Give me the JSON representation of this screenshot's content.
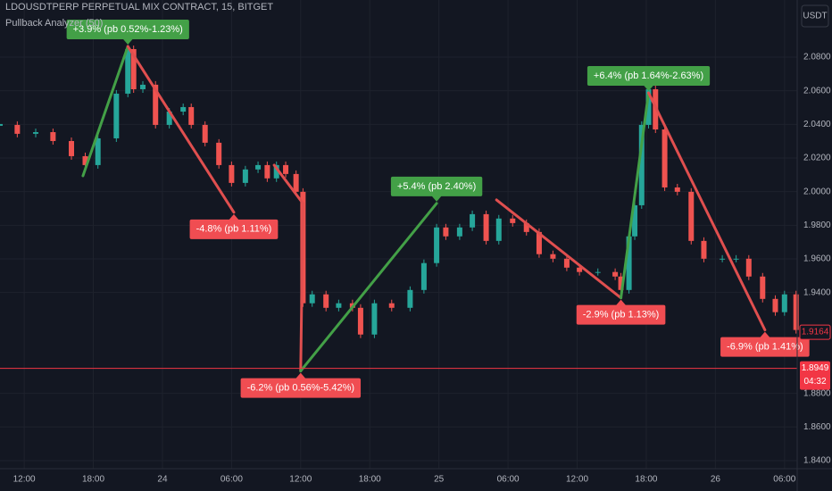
{
  "chart_data": {
    "type": "price",
    "title": "LDOUSDTPERP PERPETUAL MIX CONTRACT, 15, BITGET",
    "subtitle": "Pullback Analyzer (50)",
    "currency": "USDT",
    "xlim": [
      9.9,
      79.1
    ],
    "xticks": [
      {
        "value": 12,
        "label": "12:00"
      },
      {
        "value": 18,
        "label": "18:00"
      },
      {
        "value": 24,
        "label": "24"
      },
      {
        "value": 30,
        "label": "06:00"
      },
      {
        "value": 36,
        "label": "12:00"
      },
      {
        "value": 42,
        "label": "18:00"
      },
      {
        "value": 48,
        "label": "25"
      },
      {
        "value": 54,
        "label": "06:00"
      },
      {
        "value": 60,
        "label": "12:00"
      },
      {
        "value": 66,
        "label": "18:00"
      },
      {
        "value": 72,
        "label": "26"
      },
      {
        "value": 78,
        "label": "06:00"
      }
    ],
    "ylim": [
      1.8352,
      2.114
    ],
    "yticks": [
      {
        "value": 2.08,
        "label": "2.0800"
      },
      {
        "value": 2.06,
        "label": "2.0600"
      },
      {
        "value": 2.04,
        "label": "2.0400"
      },
      {
        "value": 2.02,
        "label": "2.0200"
      },
      {
        "value": 2.0,
        "label": "2.0000"
      },
      {
        "value": 1.98,
        "label": "1.9800"
      },
      {
        "value": 1.96,
        "label": "1.9600"
      },
      {
        "value": 1.94,
        "label": "1.9400"
      },
      {
        "value": 1.88,
        "label": "1.8800"
      },
      {
        "value": 1.86,
        "label": "1.8600"
      },
      {
        "value": 1.84,
        "label": "1.8400"
      }
    ],
    "grid": true,
    "up_color": "#26a69a",
    "down_color": "#ef5350",
    "series": [
      {
        "x": [
          9.9,
          11.4,
          13.0,
          14.5,
          16.1,
          17.3,
          18.4,
          20.0,
          21.0,
          21.5,
          22.3,
          23.4,
          24.6,
          25.8,
          26.5,
          27.7,
          28.9,
          30.0,
          31.2,
          32.3,
          33.1,
          33.9,
          34.7,
          35.6,
          36.2,
          37.0,
          38.2,
          39.3,
          40.5,
          41.2,
          42.4,
          43.9,
          45.5,
          46.7,
          47.8,
          48.6,
          49.8,
          50.9,
          52.1,
          53.2,
          54.4,
          55.6,
          56.7,
          57.9,
          59.1,
          60.2,
          61.8,
          63.3,
          63.8,
          64.5,
          65.0,
          65.6,
          66.2,
          66.8,
          67.6,
          68.7,
          69.9,
          71.0,
          72.6,
          73.8,
          74.9,
          76.1,
          77.2,
          78.0,
          79.0
        ],
        "values": [
          2.0397,
          2.0344,
          2.0354,
          2.0301,
          2.0211,
          2.0158,
          2.0317,
          2.0583,
          2.0848,
          2.0609,
          2.0636,
          2.0397,
          2.0476,
          2.0503,
          2.0397,
          2.0291,
          2.0158,
          2.0052,
          2.0132,
          2.0158,
          2.0079,
          2.0158,
          2.0105,
          1.9999,
          1.9336,
          1.9389,
          1.9309,
          1.9336,
          1.9309,
          1.915,
          1.9336,
          1.9309,
          1.9415,
          1.9575,
          1.9787,
          1.9734,
          1.9787,
          1.9866,
          1.9707,
          1.984,
          1.9813,
          1.976,
          1.9628,
          1.9601,
          1.9548,
          1.9522,
          1.9522,
          1.9495,
          1.9415,
          1.9734,
          1.9919,
          2.0397,
          2.0609,
          2.037,
          2.0025,
          1.9999,
          1.9707,
          1.9601,
          1.9601,
          1.9601,
          1.9495,
          1.9362,
          1.9283,
          1.9389,
          1.9177
        ]
      },
      {
        "x": [
          17.1,
          21.0,
          30.2,
          null,
          33.7,
          36.2,
          36.0,
          47.8,
          null,
          53.0,
          63.8,
          66.2,
          76.3
        ],
        "values": [
          2.0094,
          2.0864,
          1.9877,
          null,
          2.0158,
          1.993,
          1.8933,
          1.993,
          null,
          1.9951,
          1.9368,
          2.0588,
          1.9177
        ],
        "up_color": "#43a047",
        "down_color": "#e04f4f"
      }
    ],
    "annotations": [
      {
        "text": "+3.9% (pb 0.52%-1.23%)",
        "x": 21.0,
        "y": 2.0864,
        "side": "above",
        "color": "#43a047"
      },
      {
        "text": "-4.8% (pb 1.11%)",
        "x": 30.2,
        "y": 1.9877,
        "side": "below",
        "color": "#f04d52"
      },
      {
        "text": "-6.2% (pb 0.56%-5.42%)",
        "x": 36.0,
        "y": 1.8933,
        "side": "below",
        "color": "#f04d52"
      },
      {
        "text": "+5.4% (pb 2.40%)",
        "x": 47.8,
        "y": 1.993,
        "side": "above",
        "color": "#43a047"
      },
      {
        "text": "-2.9% (pb 1.13%)",
        "x": 63.8,
        "y": 1.9368,
        "side": "below",
        "color": "#f04d52"
      },
      {
        "text": "+6.4% (pb 1.64%-2.63%)",
        "x": 66.2,
        "y": 2.0588,
        "side": "above",
        "color": "#43a047"
      },
      {
        "text": "-6.9% (pb 1.41%)",
        "x": 76.3,
        "y": 1.9177,
        "side": "below",
        "color": "#f04d52"
      }
    ],
    "last_price": 1.9164,
    "current_price": 1.8949,
    "countdown": "04:32",
    "price_color": "#f23645"
  }
}
